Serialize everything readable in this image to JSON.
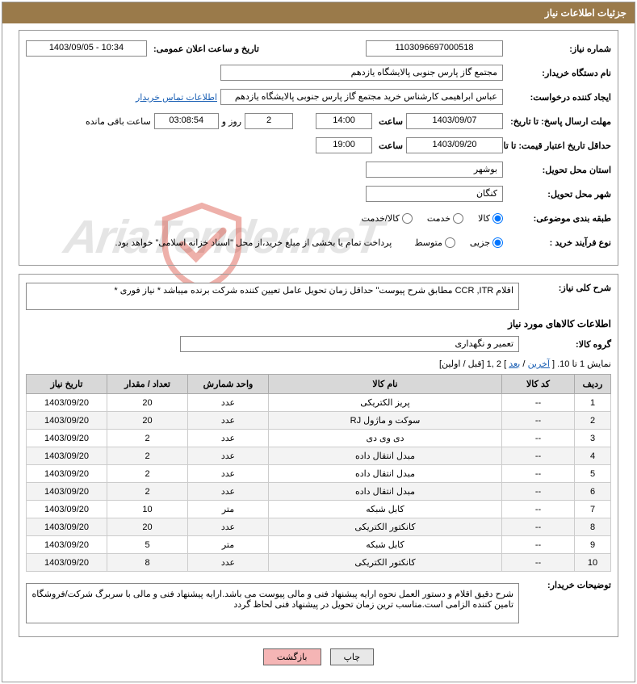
{
  "header": {
    "title": "جزئیات اطلاعات نیاز"
  },
  "form": {
    "need_number_label": "شماره نیاز:",
    "need_number": "1103096697000518",
    "announce_label": "تاریخ و ساعت اعلان عمومی:",
    "announce_value": "1403/09/05 - 10:34",
    "buyer_org_label": "نام دستگاه خریدار:",
    "buyer_org": "مجتمع گاز پارس جنوبی  پالایشگاه یازدهم",
    "requester_label": "ایجاد کننده درخواست:",
    "requester": "عباس ابراهیمی کارشناس خرید مجتمع گاز پارس جنوبی  پالایشگاه یازدهم",
    "buyer_contact_link": "اطلاعات تماس خریدار",
    "response_deadline_label": "مهلت ارسال پاسخ: تا تاریخ:",
    "response_date": "1403/09/07",
    "time_label": "ساعت",
    "response_time": "14:00",
    "days_count": "2",
    "days_word": "روز و",
    "countdown": "03:08:54",
    "remaining_label": "ساعت باقی مانده",
    "validity_label": "حداقل تاریخ اعتبار قیمت: تا تاریخ:",
    "validity_date": "1403/09/20",
    "validity_time": "19:00",
    "province_label": "استان محل تحویل:",
    "province": "بوشهر",
    "city_label": "شهر محل تحویل:",
    "city": "کنگان",
    "category_label": "طبقه بندی موضوعی:",
    "cat_goods": "کالا",
    "cat_service": "خدمت",
    "cat_goods_service": "کالا/خدمت",
    "process_label": "نوع فرآیند خرید :",
    "proc_partial": "جزیی",
    "proc_medium": "متوسط",
    "process_note": "پرداخت تمام یا بخشی از مبلغ خرید،از محل \"اسناد خزانه اسلامی\" خواهد بود.",
    "general_desc_label": "شرح کلی نیاز:",
    "general_desc": "اقلام CCR ,ITR مطابق شرح پیوست\" حداقل زمان تحویل عامل تعیین کننده شرکت برنده میباشد * نیاز فوری *",
    "goods_info_title": "اطلاعات کالاهای مورد نیاز",
    "goods_group_label": "گروه کالا:",
    "goods_group": "تعمیر و نگهداری",
    "pagination_text": "نمایش 1 تا 10. [ ",
    "pagination_last": "آخرین",
    "pagination_sep": " / ",
    "pagination_next": "بعد",
    "pagination_rest": "] 2 ,1 [قبل / اولین]",
    "buyer_notes_label": "توضیحات خریدار:",
    "buyer_notes": "شرح دقیق اقلام و دستور العمل نحوه ارایه پیشنهاد فنی و مالی پیوست می باشد.ارایه پیشنهاد فنی و مالی با سربرگ شرکت/فروشگاه تامین کننده الزامی است.مناسب ترین زمان تحویل در پیشنهاد فنی لحاظ گردد"
  },
  "table": {
    "headers": {
      "row": "ردیف",
      "code": "کد کالا",
      "name": "نام کالا",
      "unit": "واحد شمارش",
      "qty": "تعداد / مقدار",
      "date": "تاریخ نیاز"
    },
    "rows": [
      {
        "n": "1",
        "code": "--",
        "name": "پریز الکتریکی",
        "unit": "عدد",
        "qty": "20",
        "date": "1403/09/20"
      },
      {
        "n": "2",
        "code": "--",
        "name": "سوکت و ماژول RJ",
        "unit": "عدد",
        "qty": "20",
        "date": "1403/09/20"
      },
      {
        "n": "3",
        "code": "--",
        "name": "دی وی دی",
        "unit": "عدد",
        "qty": "2",
        "date": "1403/09/20"
      },
      {
        "n": "4",
        "code": "--",
        "name": "مبدل انتقال داده",
        "unit": "عدد",
        "qty": "2",
        "date": "1403/09/20"
      },
      {
        "n": "5",
        "code": "--",
        "name": "مبدل انتقال داده",
        "unit": "عدد",
        "qty": "2",
        "date": "1403/09/20"
      },
      {
        "n": "6",
        "code": "--",
        "name": "مبدل انتقال داده",
        "unit": "عدد",
        "qty": "2",
        "date": "1403/09/20"
      },
      {
        "n": "7",
        "code": "--",
        "name": "کابل شبکه",
        "unit": "متر",
        "qty": "10",
        "date": "1403/09/20"
      },
      {
        "n": "8",
        "code": "--",
        "name": "کانکتور الکتریکی",
        "unit": "عدد",
        "qty": "20",
        "date": "1403/09/20"
      },
      {
        "n": "9",
        "code": "--",
        "name": "کابل شبکه",
        "unit": "متر",
        "qty": "5",
        "date": "1403/09/20"
      },
      {
        "n": "10",
        "code": "--",
        "name": "کانکتور الکتریکی",
        "unit": "عدد",
        "qty": "8",
        "date": "1403/09/20"
      }
    ]
  },
  "buttons": {
    "print": "چاپ",
    "back": "بازگشت"
  },
  "watermark": "AriaTender.neT",
  "colors": {
    "header_bg": "#9a7a4a",
    "link": "#1a5fb4",
    "btn_back_bg": "#f5b5b5",
    "logo_red": "#d43a2a"
  }
}
